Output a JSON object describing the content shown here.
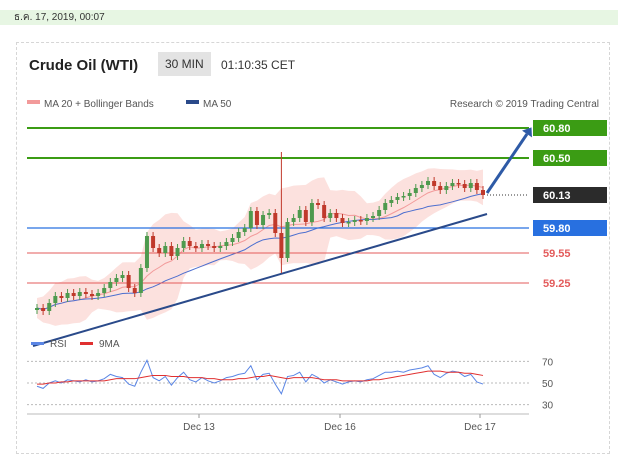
{
  "date_bar": "ธ.ค. 17, 2019, 00:07",
  "header": {
    "title": "Crude Oil (WTI)",
    "timeframe": "30 MIN",
    "time": "01:10:35 CET"
  },
  "legend": {
    "ma20": "MA 20 + Bollinger Bands",
    "ma50": "MA 50",
    "credit": "Research © 2019 Trading Central"
  },
  "rsi_legend": {
    "rsi": "RSI",
    "ma9": "9MA"
  },
  "colors": {
    "green_level": "#3b9c14",
    "blue_level": "#2870e0",
    "red_level": "#e35b5b",
    "current": "#2b2b2b",
    "trend": "#2a4a8a",
    "candle_up": "#4e9a4e",
    "candle_down": "#c0392b",
    "band": "#fbd4d0",
    "ma20": "#f29a9a",
    "ma50": "#4d6fcf",
    "rsi": "#5b86e5",
    "rsi_ma": "#e03030"
  },
  "chart_data": {
    "type": "candlestick",
    "title": "Crude Oil (WTI)",
    "timeframe": "30 MIN",
    "x_ticks": [
      "Dec 13",
      "Dec 16",
      "Dec 17"
    ],
    "ylim": [
      58.8,
      60.95
    ],
    "levels": [
      {
        "value": 60.8,
        "label": "60.80",
        "kind": "resistance"
      },
      {
        "value": 60.5,
        "label": "60.50",
        "kind": "resistance"
      },
      {
        "value": 60.13,
        "label": "60.13",
        "kind": "current"
      },
      {
        "value": 59.8,
        "label": "59.80",
        "kind": "pivot"
      },
      {
        "value": 59.55,
        "label": "59.55",
        "kind": "support"
      },
      {
        "value": 59.25,
        "label": "59.25",
        "kind": "support"
      }
    ],
    "price_path": [
      59.0,
      58.97,
      59.05,
      59.12,
      59.1,
      59.15,
      59.12,
      59.16,
      59.14,
      59.12,
      59.15,
      59.2,
      59.26,
      59.3,
      59.33,
      59.2,
      59.15,
      59.4,
      59.72,
      59.6,
      59.55,
      59.62,
      59.52,
      59.6,
      59.67,
      59.62,
      59.6,
      59.64,
      59.62,
      59.6,
      59.62,
      59.66,
      59.7,
      59.76,
      59.8,
      59.97,
      59.83,
      59.93,
      59.95,
      59.75,
      59.5,
      59.86,
      59.9,
      59.98,
      59.86,
      60.05,
      60.03,
      59.9,
      59.95,
      59.9,
      59.85,
      59.86,
      59.88,
      59.87,
      59.9,
      59.92,
      59.98,
      60.05,
      60.08,
      60.11,
      60.12,
      60.15,
      60.2,
      60.23,
      60.27,
      60.22,
      60.18,
      60.22,
      60.25,
      60.24,
      60.2,
      60.25,
      60.18,
      60.13
    ],
    "spike_high": 60.56,
    "spike_low": 59.35,
    "trendline": [
      [
        0,
        58.62
      ],
      [
        73,
        59.94
      ]
    ],
    "projection": {
      "from": 60.13,
      "to": 60.8
    },
    "rsi": {
      "ticks": [
        70,
        50,
        30
      ],
      "values": [
        47,
        45,
        50,
        52,
        50,
        53,
        52,
        51,
        53,
        51,
        52,
        54,
        58,
        56,
        55,
        49,
        47,
        60,
        71,
        55,
        52,
        56,
        48,
        55,
        60,
        53,
        51,
        55,
        52,
        50,
        52,
        55,
        56,
        58,
        59,
        66,
        53,
        58,
        59,
        49,
        40,
        56,
        57,
        60,
        51,
        58,
        55,
        50,
        53,
        51,
        49,
        51,
        52,
        51,
        53,
        54,
        57,
        60,
        60,
        61,
        60,
        62,
        63,
        64,
        66,
        58,
        55,
        59,
        61,
        60,
        56,
        58,
        51,
        49
      ],
      "ma9": [
        49,
        49,
        50,
        50,
        51,
        51,
        52,
        52,
        52,
        52,
        52,
        52,
        53,
        54,
        54,
        54,
        54,
        55,
        56,
        57,
        57,
        57,
        56,
        56,
        56,
        55,
        55,
        55,
        54,
        54,
        53,
        53,
        53,
        54,
        54,
        55,
        56,
        56,
        57,
        56,
        55,
        54,
        55,
        55,
        55,
        55,
        54,
        53,
        53,
        53,
        52,
        52,
        52,
        52,
        52,
        53,
        53,
        54,
        55,
        56,
        57,
        58,
        59,
        60,
        61,
        61,
        61,
        60,
        60,
        60,
        59,
        59,
        58,
        57
      ]
    }
  }
}
